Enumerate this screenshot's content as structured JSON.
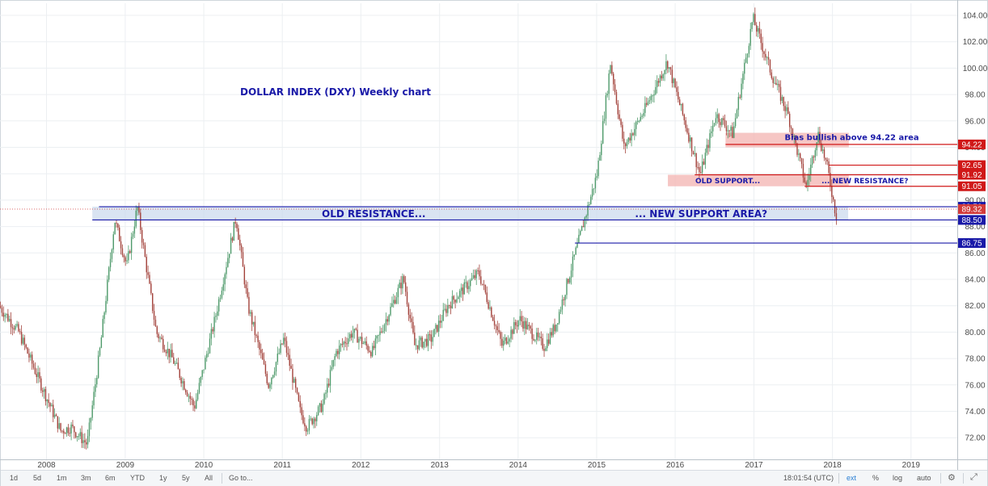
{
  "chart_data": {
    "type": "candlestick",
    "title": "DOLLAR INDEX (DXY) Weekly chart",
    "x_range": [
      "2007-06-01",
      "2019-07-01"
    ],
    "y_range": [
      70.0,
      105.0
    ],
    "y_ticks": [
      "72.00",
      "74.00",
      "76.00",
      "78.00",
      "80.00",
      "82.00",
      "84.00",
      "86.00",
      "88.00",
      "90.00",
      "92.00",
      "94.00",
      "96.00",
      "98.00",
      "100.00",
      "102.00",
      "104.00"
    ],
    "x_ticks": [
      "2008",
      "2009",
      "2010",
      "2011",
      "2012",
      "2013",
      "2014",
      "2015",
      "2016",
      "2017",
      "2018",
      "2019"
    ],
    "grid": true,
    "colors": {
      "up": "#4f9a6b",
      "down": "#a3433c",
      "price_line": "#d23b3b",
      "resistance_zone": "#f4b8b5",
      "support_zone": "#c9d8ec",
      "blue_line": "#1a1aa8",
      "red_line": "#d01818"
    },
    "series": [
      {
        "x": [
          "2007-06-01",
          "2007-09-01",
          "2007-12-01",
          "2008-03-15",
          "2008-05-01",
          "2008-07-15",
          "2008-09-15",
          "2008-11-20",
          "2009-01-15",
          "2009-03-05",
          "2009-06-01",
          "2009-08-15",
          "2009-11-25",
          "2010-03-01",
          "2010-06-07",
          "2010-08-01",
          "2010-11-05",
          "2011-01-15",
          "2011-04-01",
          "2011-05-02",
          "2011-07-15",
          "2011-09-15",
          "2011-12-01",
          "2012-03-01",
          "2012-07-24",
          "2012-09-14",
          "2012-12-01",
          "2013-02-15",
          "2013-07-09",
          "2013-10-25",
          "2014-01-15",
          "2014-05-08",
          "2014-07-01",
          "2014-10-01",
          "2015-01-10",
          "2015-03-13",
          "2015-05-15",
          "2015-08-24",
          "2015-12-02",
          "2016-05-03",
          "2016-07-15",
          "2016-10-01",
          "2017-01-03",
          "2017-04-01",
          "2017-06-15",
          "2017-09-08",
          "2017-11-01",
          "2017-12-15",
          "2018-01-25"
        ],
        "y": [
          82.0,
          80.0,
          76.5,
          72.5,
          72.8,
          71.5,
          79.0,
          88.5,
          85.0,
          89.5,
          80.0,
          78.0,
          74.3,
          81.0,
          88.7,
          82.0,
          76.0,
          79.5,
          74.0,
          72.8,
          74.5,
          78.5,
          80.0,
          78.5,
          84.1,
          79.0,
          79.5,
          82.0,
          84.5,
          79.0,
          81.0,
          78.9,
          80.5,
          86.0,
          92.0,
          100.4,
          94.0,
          97.0,
          100.5,
          91.9,
          96.5,
          95.0,
          103.8,
          99.5,
          96.5,
          91.0,
          95.1,
          92.5,
          88.8
        ]
      }
    ],
    "levels": [
      {
        "value": 94.22,
        "label": "94.22",
        "color": "#d01818"
      },
      {
        "value": 92.65,
        "label": "92.65",
        "color": "#d01818"
      },
      {
        "value": 91.92,
        "label": "91.92",
        "color": "#d01818"
      },
      {
        "value": 91.05,
        "label": "91.05",
        "color": "#d01818"
      },
      {
        "value": 89.5,
        "label": "89.50",
        "color": "#1a1aa8"
      },
      {
        "value": 89.32,
        "label": "89.32",
        "color": "#d23b3b"
      },
      {
        "value": 88.5,
        "label": "88.50",
        "color": "#1a1aa8"
      },
      {
        "value": 86.75,
        "label": "86.75",
        "color": "#1a1aa8"
      }
    ],
    "annotations": {
      "bias": "Bias bullish above 94.22 area",
      "old_support": "OLD SUPPORT...",
      "new_resistance": "... NEW RESISTANCE?",
      "old_resistance": "OLD RESISTANCE...",
      "new_support": "... NEW SUPPORT AREA?"
    }
  },
  "toolbar": {
    "ranges": [
      "1d",
      "5d",
      "1m",
      "3m",
      "6m",
      "YTD",
      "1y",
      "5y",
      "All"
    ],
    "goto": "Go to...",
    "clock": "18:01:54 (UTC)",
    "ext": "ext",
    "percent": "%",
    "log": "log",
    "auto": "auto"
  }
}
